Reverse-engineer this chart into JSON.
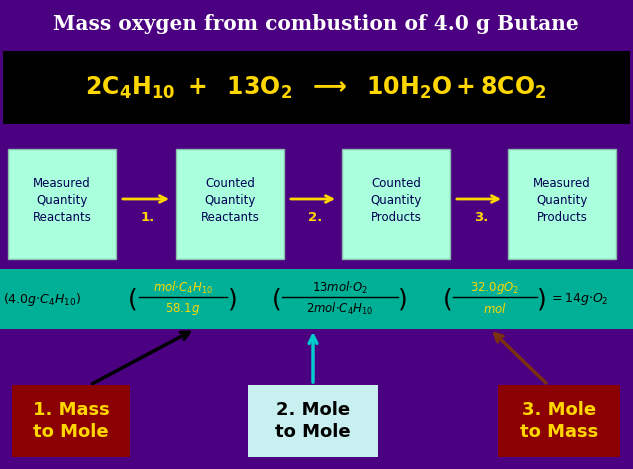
{
  "title": "Mass oxygen from combustion of 4.0 g Butane",
  "bg_color": "#4B0082",
  "title_color": "#FFFFFF",
  "equation_bg": "#000000",
  "equation_color": "#FFD700",
  "teal_bg": "#00B096",
  "box_bg": "#AAFFDD",
  "box_text_color": "#000055",
  "step_arrow_color": "#FFD700",
  "label1_bg": "#8B0000",
  "label1_color": "#FFD700",
  "label2_bg": "#C8F0F0",
  "label2_color": "#000000",
  "label3_bg": "#8B0000",
  "label3_color": "#FFD700",
  "arrow1_color": "#000000",
  "arrow2_color": "#00CCCC",
  "arrow3_color": "#7B3010",
  "boxes": [
    "Measured\nQuantity\nReactants",
    "Counted\nQuantity\nReactants",
    "Counted\nQuantity\nProducts",
    "Measured\nQuantity\nProducts"
  ],
  "step_labels": [
    "1.",
    "2.",
    "3."
  ],
  "formula_color_yellow": "#FFD700",
  "formula_color_black": "#000000"
}
